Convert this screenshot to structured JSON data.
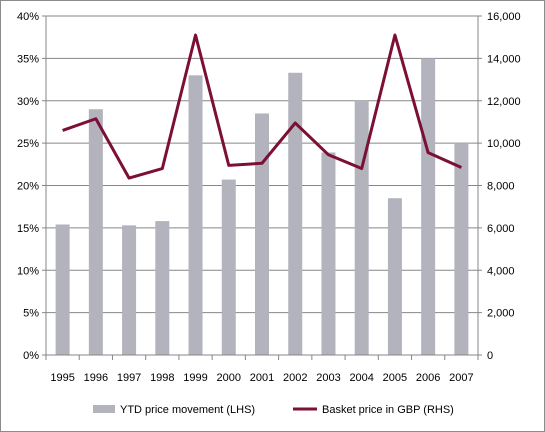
{
  "chart_data": {
    "type": "bar",
    "categories": [
      "1995",
      "1996",
      "1997",
      "1998",
      "1999",
      "2000",
      "2001",
      "2002",
      "2003",
      "2004",
      "2005",
      "2006",
      "2007"
    ],
    "series": [
      {
        "name": "YTD price movement (LHS)",
        "kind": "bar",
        "axis": "left",
        "color": "#b3b3be",
        "values": [
          15.4,
          29.0,
          15.3,
          15.8,
          33.0,
          20.7,
          28.5,
          33.3,
          23.9,
          30.0,
          18.5,
          35.0,
          25.0
        ]
      },
      {
        "name": "Basket price in GBP (RHS)",
        "kind": "line",
        "axis": "right",
        "color": "#7b1034",
        "values": [
          10600,
          11150,
          8350,
          8800,
          15100,
          8950,
          9050,
          10950,
          9450,
          8800,
          15100,
          9550,
          8850
        ]
      }
    ],
    "left_axis": {
      "ylim": [
        0,
        40
      ],
      "ticks": [
        0,
        5,
        10,
        15,
        20,
        25,
        30,
        35,
        40
      ],
      "tick_labels": [
        "0%",
        "5%",
        "10%",
        "15%",
        "20%",
        "25%",
        "30%",
        "35%",
        "40%"
      ]
    },
    "right_axis": {
      "ylim": [
        0,
        16000
      ],
      "ticks": [
        0,
        2000,
        4000,
        6000,
        8000,
        10000,
        12000,
        14000,
        16000
      ],
      "tick_labels": [
        "0",
        "2,000",
        "4,000",
        "6,000",
        "8,000",
        "10,000",
        "12,000",
        "14,000",
        "16,000"
      ]
    },
    "grid": {
      "horizontal": true,
      "vertical": false,
      "color": "#878787"
    },
    "legend": {
      "position": "bottom"
    }
  }
}
